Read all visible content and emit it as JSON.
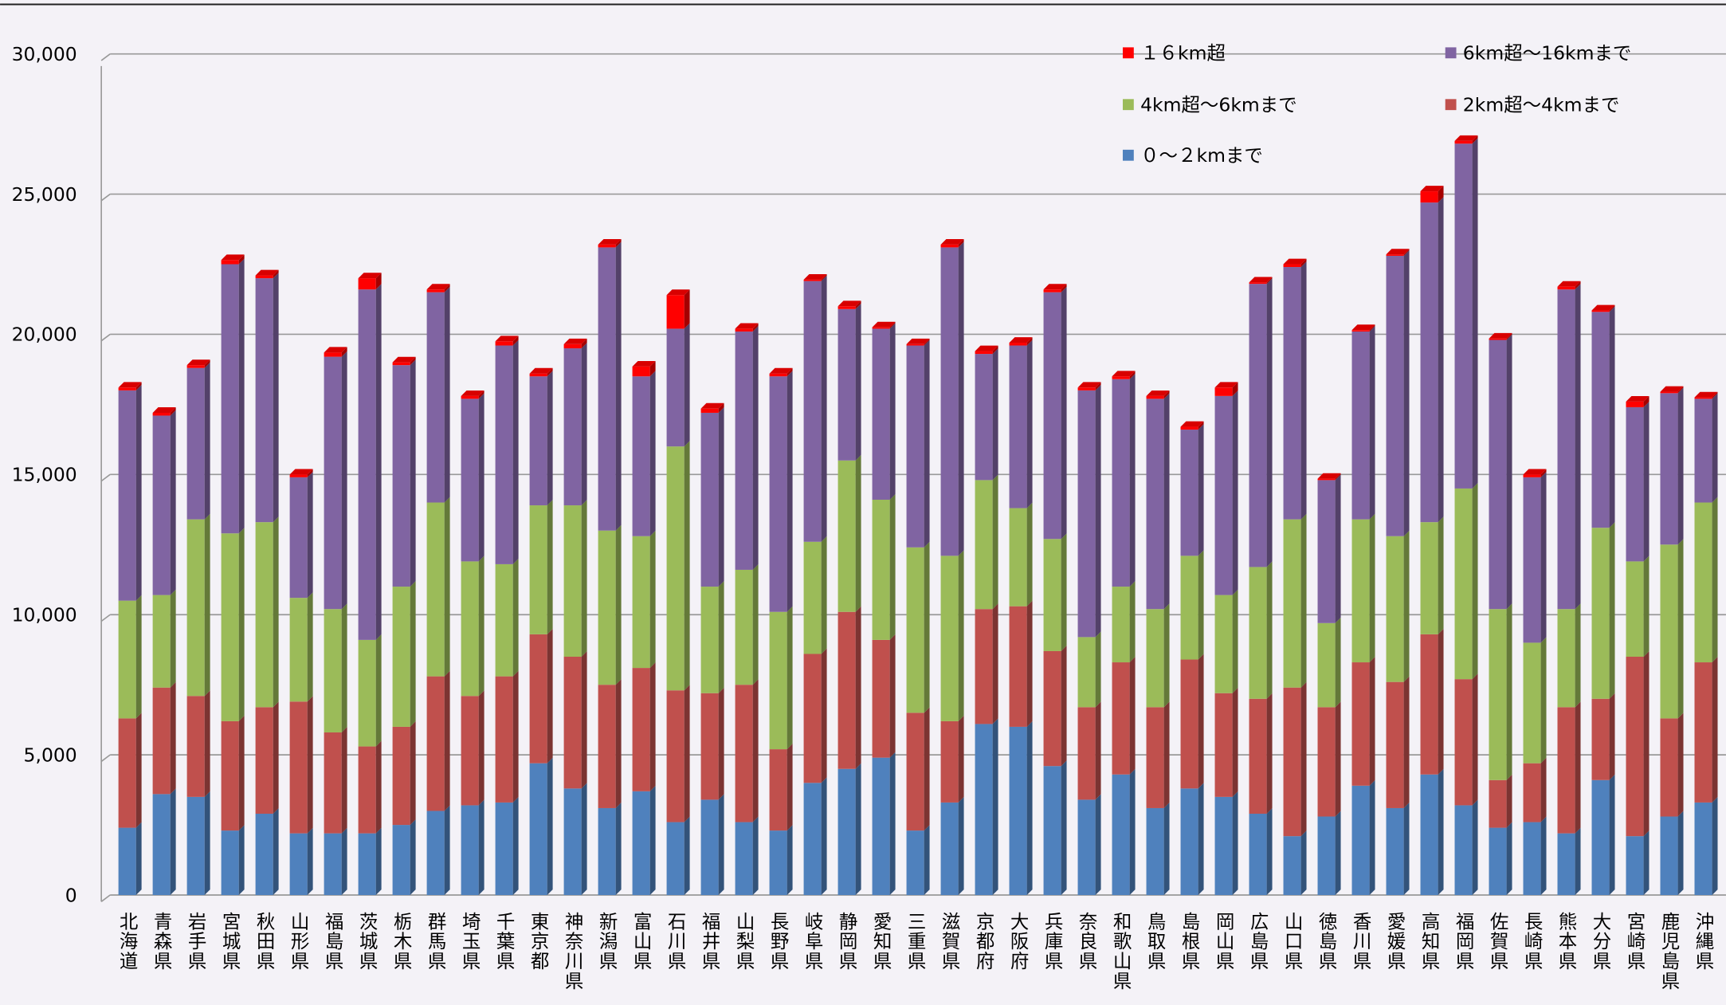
{
  "chart_data": {
    "type": "stacked_bar_3d",
    "categories": [
      "北海道",
      "青森県",
      "岩手県",
      "宮城県",
      "秋田県",
      "山形県",
      "福島県",
      "茨城県",
      "栃木県",
      "群馬県",
      "埼玉県",
      "千葉県",
      "東京都",
      "神奈川県",
      "新潟県",
      "富山県",
      "石川県",
      "福井県",
      "山梨県",
      "長野県",
      "岐阜県",
      "静岡県",
      "愛知県",
      "三重県",
      "滋賀県",
      "京都府",
      "大阪府",
      "兵庫県",
      "奈良県",
      "和歌山県",
      "鳥取県",
      "島根県",
      "岡山県",
      "広島県",
      "山口県",
      "徳島県",
      "香川県",
      "愛媛県",
      "高知県",
      "福岡県",
      "佐賀県",
      "長崎県",
      "熊本県",
      "大分県",
      "宮崎県",
      "鹿児島県",
      "沖縄県"
    ],
    "series": [
      {
        "name": "０～２kmまで",
        "color": "#4f81bd",
        "values": [
          2400,
          3600,
          3500,
          2300,
          2900,
          2200,
          2200,
          2200,
          2500,
          3000,
          3200,
          3300,
          4700,
          3800,
          3100,
          3700,
          2600,
          3400,
          2600,
          2300,
          4000,
          4500,
          4900,
          2300,
          3300,
          6100,
          6000,
          4600,
          3400,
          4300,
          3100,
          3800,
          3500,
          2900,
          2100,
          2800,
          3900,
          3100,
          4300,
          3200,
          2400,
          2600,
          2200,
          4100,
          2100,
          2800,
          3300
        ]
      },
      {
        "name": "2km超～4kmまで",
        "color": "#c0504d",
        "values": [
          3900,
          3800,
          3600,
          3900,
          3800,
          4700,
          3600,
          3100,
          3500,
          4800,
          3900,
          4500,
          4600,
          4700,
          4400,
          4400,
          4700,
          3800,
          4900,
          2900,
          4600,
          5600,
          4200,
          4200,
          2900,
          4100,
          4300,
          4100,
          3300,
          4000,
          3600,
          4600,
          3700,
          4100,
          5300,
          3900,
          4400,
          4500,
          5000,
          4500,
          1700,
          2100,
          4500,
          2900,
          6400,
          3500,
          5000
        ]
      },
      {
        "name": "4km超～6kmまで",
        "color": "#9bbb59",
        "values": [
          4200,
          3300,
          6300,
          6700,
          6600,
          3700,
          4400,
          3800,
          5000,
          6200,
          4800,
          4000,
          4600,
          5400,
          5500,
          4700,
          8700,
          3800,
          4100,
          4900,
          4000,
          5400,
          5000,
          5900,
          5900,
          4600,
          3500,
          4000,
          2500,
          2700,
          3500,
          3700,
          3500,
          4700,
          6000,
          3000,
          5100,
          5200,
          4000,
          6800,
          6100,
          4300,
          3500,
          6100,
          3400,
          6200,
          5700
        ]
      },
      {
        "name": "6km超～16kmまで",
        "color": "#8064a2",
        "values": [
          7500,
          6400,
          5400,
          9600,
          8700,
          4300,
          9000,
          12500,
          7900,
          7500,
          5800,
          7800,
          4600,
          5600,
          10100,
          5700,
          4200,
          6200,
          8500,
          8400,
          9300,
          5400,
          6100,
          7200,
          11000,
          4500,
          5800,
          8800,
          8800,
          7400,
          7500,
          4500,
          7100,
          10100,
          9000,
          5100,
          6700,
          10000,
          11400,
          12300,
          9600,
          5900,
          11400,
          7700,
          5500,
          5400,
          3700
        ]
      },
      {
        "name": "１６km超",
        "color": "#ff0000",
        "values": [
          100,
          100,
          100,
          150,
          100,
          100,
          150,
          400,
          100,
          100,
          100,
          150,
          100,
          150,
          100,
          350,
          1200,
          150,
          100,
          100,
          50,
          100,
          50,
          50,
          100,
          100,
          100,
          100,
          100,
          100,
          100,
          100,
          300,
          50,
          100,
          50,
          50,
          50,
          400,
          100,
          50,
          100,
          100,
          50,
          200,
          50,
          50
        ]
      }
    ],
    "ylim": [
      0,
      30000
    ],
    "yticks": [
      0,
      {
        "value": 5000,
        "label": "5,000"
      },
      {
        "value": 10000,
        "label": "10,000"
      },
      {
        "value": 15000,
        "label": "15,000"
      },
      {
        "value": 20000,
        "label": "20,000"
      },
      {
        "value": 25000,
        "label": "25,000"
      },
      {
        "value": 30000,
        "label": "30,000"
      }
    ],
    "grid": true
  }
}
